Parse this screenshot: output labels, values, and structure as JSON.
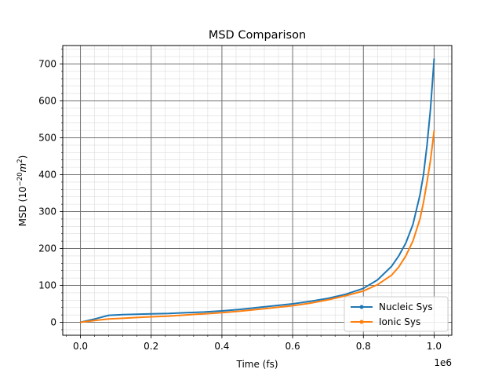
{
  "chart_data": {
    "type": "line",
    "title": "MSD Comparison",
    "xlabel": "Time (fs)",
    "ylabel_prefix": "MSD (10",
    "ylabel_exp": "−20",
    "ylabel_unit": "m",
    "ylabel_unit_exp": "2",
    "ylabel_suffix": ")",
    "x_offset_label": "1e6",
    "xlim": [
      -0.05,
      1.05
    ],
    "ylim": [
      -35,
      750
    ],
    "x_ticks": [
      0.0,
      0.2,
      0.4,
      0.6,
      0.8,
      1.0
    ],
    "x_tick_labels": [
      "0.0",
      "0.2",
      "0.4",
      "0.6",
      "0.8",
      "1.0"
    ],
    "y_ticks": [
      0,
      100,
      200,
      300,
      400,
      500,
      600,
      700
    ],
    "y_tick_labels": [
      "0",
      "100",
      "200",
      "300",
      "400",
      "500",
      "600",
      "700"
    ],
    "grid": true,
    "legend_position": "lower-right",
    "series": [
      {
        "name": "Nucleic Sys",
        "color": "#1f77b4",
        "x": [
          0,
          0.04,
          0.08,
          0.12,
          0.16,
          0.2,
          0.25,
          0.3,
          0.35,
          0.4,
          0.45,
          0.5,
          0.55,
          0.6,
          0.65,
          0.7,
          0.75,
          0.8,
          0.84,
          0.88,
          0.9,
          0.92,
          0.94,
          0.96,
          0.97,
          0.98,
          0.99,
          1.0
        ],
        "y": [
          0,
          9,
          19,
          21,
          22,
          23,
          24,
          26,
          28,
          31,
          35,
          40,
          45,
          50,
          57,
          65,
          76,
          92,
          115,
          152,
          180,
          215,
          265,
          345,
          400,
          480,
          580,
          715
        ]
      },
      {
        "name": "Ionic Sys",
        "color": "#ff7f0e",
        "x": [
          0,
          0.04,
          0.08,
          0.12,
          0.16,
          0.2,
          0.25,
          0.3,
          0.35,
          0.4,
          0.45,
          0.5,
          0.55,
          0.6,
          0.65,
          0.7,
          0.75,
          0.8,
          0.84,
          0.88,
          0.9,
          0.92,
          0.94,
          0.96,
          0.97,
          0.98,
          0.99,
          1.0
        ],
        "y": [
          0,
          5,
          9,
          11,
          13,
          15,
          17,
          20,
          23,
          26,
          30,
          35,
          40,
          45,
          52,
          61,
          72,
          85,
          102,
          128,
          150,
          180,
          220,
          280,
          325,
          380,
          440,
          520
        ]
      }
    ]
  }
}
